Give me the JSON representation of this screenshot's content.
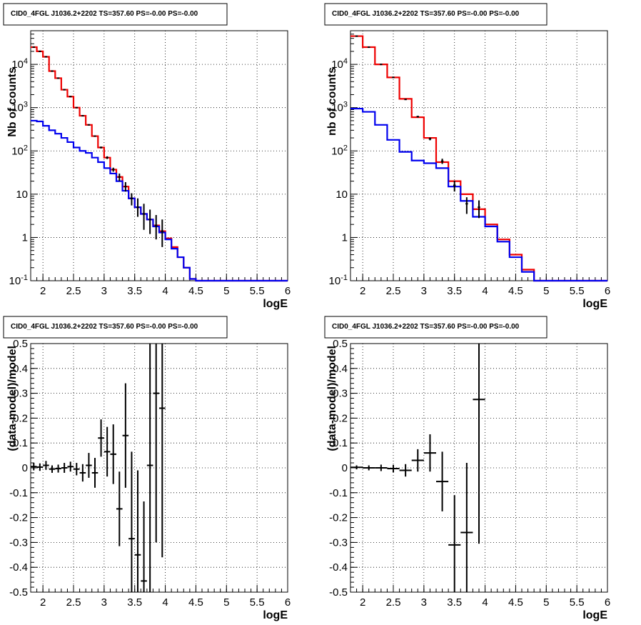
{
  "colors": {
    "data": "#000000",
    "total_model": "#ee0000",
    "source_model": "#0000ee",
    "grid": "#000000"
  },
  "chart_data": [
    {
      "type": "line",
      "title": "CID0_4FGL J1036.2+2202 TS=357.60 PS=-0.00 PS=-0.00",
      "xlabel": "logE",
      "ylabel": "Nb of counts",
      "xlim": [
        1.8,
        6
      ],
      "ylim": [
        0.1,
        60000
      ],
      "yscale": "log",
      "grid": true,
      "x_ticks": [
        "2",
        "2.5",
        "3",
        "3.5",
        "4",
        "4.5",
        "5",
        "5.5",
        "6"
      ],
      "y_ticks": [
        "10^-1",
        "1",
        "10",
        "10^2",
        "10^3",
        "10^4"
      ],
      "bin_edges": [
        1.8,
        1.9,
        2.0,
        2.1,
        2.2,
        2.3,
        2.4,
        2.5,
        2.6,
        2.7,
        2.8,
        2.9,
        3.0,
        3.1,
        3.2,
        3.3,
        3.4,
        3.5,
        3.6,
        3.7,
        3.8,
        3.9,
        4.0,
        4.1,
        4.2,
        4.3,
        4.4,
        4.5,
        4.6,
        4.7,
        4.8,
        4.9,
        5.0,
        5.1,
        5.2,
        5.3,
        5.4,
        5.5,
        5.6,
        5.7,
        5.8,
        5.9,
        6.0
      ],
      "series": [
        {
          "kind": "step",
          "color": "#ee0000",
          "values": [
            25000,
            20000,
            15000,
            7000,
            4800,
            2600,
            1800,
            1000,
            650,
            400,
            220,
            120,
            70,
            37,
            25,
            15,
            8,
            5,
            3.5,
            2.6,
            1.9,
            1.4,
            0.95,
            0.6,
            0.35,
            0.2,
            0.11,
            0.1,
            0.1,
            0.1,
            0.1,
            0.1,
            0.1,
            0.1,
            0.1,
            0.1,
            0.1,
            0.1,
            0.1,
            0.1,
            0.1,
            0.1
          ]
        },
        {
          "kind": "step",
          "color": "#0000ee",
          "values": [
            500,
            480,
            380,
            300,
            250,
            200,
            160,
            120,
            100,
            90,
            70,
            55,
            40,
            30,
            20,
            12,
            8,
            5,
            3.5,
            2.6,
            1.8,
            1.3,
            0.9,
            0.55,
            0.35,
            0.2,
            0.11,
            0.1,
            0.1,
            0.1,
            0.1,
            0.1,
            0.1,
            0.1,
            0.1,
            0.1,
            0.1,
            0.1,
            0.1,
            0.1,
            0.1,
            0.1
          ]
        },
        {
          "kind": "points",
          "color": "#000000",
          "x": [
            1.85,
            1.95,
            2.05,
            2.15,
            2.25,
            2.35,
            2.45,
            2.55,
            2.65,
            2.75,
            2.85,
            2.95,
            3.05,
            3.15,
            3.25,
            3.35,
            3.45,
            3.55,
            3.65,
            3.75,
            3.85,
            3.95
          ],
          "y": [
            25000,
            20000,
            15000,
            7000,
            4800,
            2600,
            1800,
            1000,
            650,
            400,
            220,
            120,
            70,
            37,
            25,
            15,
            8,
            5,
            3.5,
            2.6,
            1.9,
            1.4
          ],
          "yerr_low": [
            24800,
            19800,
            14800,
            6900,
            4750,
            2570,
            1780,
            985,
            640,
            390,
            212,
            114,
            65,
            33,
            20,
            11.5,
            5.5,
            3,
            1.5,
            1.2,
            0.9,
            0.6
          ],
          "yerr_high": [
            25200,
            20200,
            15200,
            7100,
            4850,
            2630,
            1820,
            1015,
            660,
            410,
            228,
            126,
            75,
            41,
            30,
            19,
            10.5,
            8,
            6,
            4.4,
            3.3,
            2.6
          ]
        }
      ]
    },
    {
      "type": "line",
      "title": "CID0_4FGL J1036.2+2202 TS=357.60 PS=-0.00 PS=-0.00",
      "xlabel": "logE",
      "ylabel": "nb of counts",
      "xlim": [
        1.8,
        6
      ],
      "ylim": [
        0.1,
        60000
      ],
      "yscale": "log",
      "grid": true,
      "x_ticks": [
        "2",
        "2.5",
        "3",
        "3.5",
        "4",
        "4.5",
        "5",
        "5.5",
        "6"
      ],
      "y_ticks": [
        "10^-1",
        "1",
        "10",
        "10^2",
        "10^3",
        "10^4"
      ],
      "bin_edges": [
        1.8,
        2.0,
        2.2,
        2.4,
        2.6,
        2.8,
        3.0,
        3.2,
        3.4,
        3.6,
        3.8,
        4.0,
        4.2,
        4.4,
        4.6,
        4.8,
        5.0,
        5.2,
        5.4,
        5.6,
        5.8,
        6.0
      ],
      "series": [
        {
          "kind": "step",
          "color": "#ee0000",
          "values": [
            45000,
            25000,
            10000,
            5000,
            1600,
            600,
            200,
            55,
            20,
            10,
            4.5,
            2,
            0.9,
            0.4,
            0.18,
            0.1,
            0.1,
            0.1,
            0.1,
            0.1,
            0.1
          ]
        },
        {
          "kind": "step",
          "color": "#0000ee",
          "values": [
            950,
            800,
            400,
            180,
            95,
            60,
            52,
            40,
            15,
            7,
            3,
            1.8,
            0.8,
            0.35,
            0.16,
            0.1,
            0.1,
            0.1,
            0.1,
            0.1,
            0.1
          ]
        },
        {
          "kind": "points",
          "color": "#000000",
          "x": [
            1.9,
            2.1,
            2.3,
            2.5,
            2.7,
            2.9,
            3.1,
            3.3,
            3.5,
            3.7,
            3.9
          ],
          "y": [
            45000,
            25000,
            10000,
            5000,
            1550,
            620,
            190,
            58,
            16,
            6,
            5
          ],
          "yerr_low": [
            44800,
            24840,
            9900,
            4930,
            1510,
            595,
            176,
            50,
            11.5,
            3.5,
            2.8
          ],
          "yerr_high": [
            45200,
            25160,
            10100,
            5070,
            1590,
            645,
            204,
            66,
            20.5,
            8.5,
            7.2
          ]
        }
      ]
    },
    {
      "type": "scatter",
      "title": "CID0_4FGL J1036.2+2202 TS=357.60 PS=-0.00 PS=-0.00",
      "xlabel": "logE",
      "ylabel": "(data-model)/model",
      "xlim": [
        1.8,
        6
      ],
      "ylim": [
        -0.5,
        0.5
      ],
      "grid": true,
      "x_ticks": [
        "2",
        "2.5",
        "3",
        "3.5",
        "4",
        "4.5",
        "5",
        "5.5",
        "6"
      ],
      "y_ticks": [
        "-0.5",
        "-0.4",
        "-0.3",
        "-0.2",
        "-0.1",
        "0",
        "0.1",
        "0.2",
        "0.3",
        "0.4",
        "0.5"
      ],
      "series": [
        {
          "kind": "points",
          "color": "#000000",
          "xwidth": 0.1,
          "x": [
            1.85,
            1.95,
            2.05,
            2.15,
            2.25,
            2.35,
            2.45,
            2.55,
            2.65,
            2.75,
            2.85,
            2.95,
            3.05,
            3.15,
            3.25,
            3.35,
            3.45,
            3.55,
            3.65,
            3.75,
            3.85,
            3.95
          ],
          "y": [
            0.005,
            0.003,
            0.01,
            -0.005,
            -0.003,
            0.0,
            0.005,
            -0.005,
            -0.02,
            0.01,
            -0.02,
            0.12,
            0.065,
            0.055,
            -0.165,
            0.13,
            -0.285,
            -0.35,
            -0.455,
            0.01,
            0.3,
            0.24
          ],
          "yerr": [
            0.015,
            0.015,
            0.018,
            0.015,
            0.016,
            0.02,
            0.02,
            0.025,
            0.035,
            0.05,
            0.06,
            0.075,
            0.1,
            0.12,
            0.15,
            0.21,
            0.35,
            0.34,
            0.32,
            0.52,
            0.6,
            0.6
          ]
        }
      ]
    },
    {
      "type": "scatter",
      "title": "CID0_4FGL J1036.2+2202 TS=357.60 PS=-0.00 PS=-0.00",
      "xlabel": "logE",
      "ylabel": "(data-model)/model",
      "xlim": [
        1.8,
        6
      ],
      "ylim": [
        -0.5,
        0.5
      ],
      "grid": true,
      "x_ticks": [
        "2",
        "2.5",
        "3",
        "3.5",
        "4",
        "4.5",
        "5",
        "5.5",
        "6"
      ],
      "y_ticks": [
        "-0.5",
        "-0.4",
        "-0.3",
        "-0.2",
        "-0.1",
        "0",
        "0.1",
        "0.2",
        "0.3",
        "0.4",
        "0.5"
      ],
      "series": [
        {
          "kind": "points",
          "color": "#000000",
          "xwidth": 0.2,
          "x": [
            1.9,
            2.1,
            2.3,
            2.5,
            2.7,
            2.9,
            3.1,
            3.3,
            3.5,
            3.7,
            3.9
          ],
          "y": [
            0.002,
            0.0,
            0.0,
            -0.003,
            -0.01,
            0.03,
            0.06,
            -0.055,
            -0.31,
            -0.26,
            0.275
          ],
          "yerr": [
            0.008,
            0.01,
            0.013,
            0.015,
            0.025,
            0.045,
            0.075,
            0.12,
            0.2,
            0.28,
            0.58
          ]
        }
      ]
    }
  ]
}
